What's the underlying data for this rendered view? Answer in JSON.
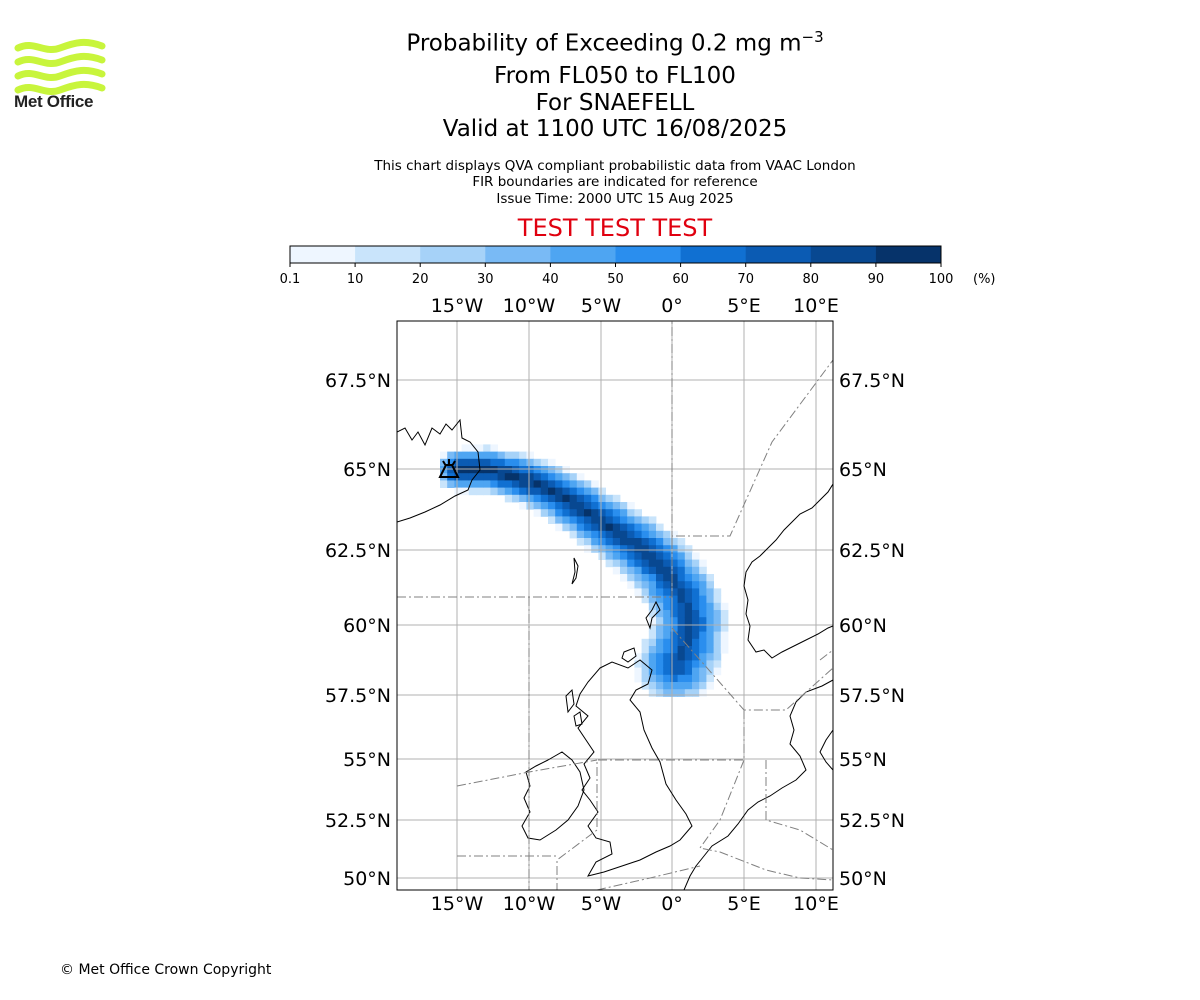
{
  "header": {
    "title_main": "Probability of Exceeding 0.2 mg m",
    "title_sup": "−3",
    "flight_levels": "From FL050 to FL100",
    "volcano": "For SNAEFELL",
    "valid": "Valid at 1100 UTC 16/08/2025",
    "note_1": "This chart displays QVA compliant probabilistic data from VAAC London",
    "note_2": "FIR boundaries are indicated for reference",
    "issue_time": "Issue Time: 2000 UTC 15 Aug 2025",
    "test_banner": "TEST TEST TEST"
  },
  "logo": {
    "text": "Met Office",
    "color": "#c8f53c"
  },
  "colorbar": {
    "unit": "(%)",
    "ticks": [
      "0.1",
      "10",
      "20",
      "30",
      "40",
      "50",
      "60",
      "70",
      "80",
      "90",
      "100"
    ],
    "colors": [
      "#eef6ff",
      "#c9e4fb",
      "#a6d2f8",
      "#79baf5",
      "#4ea5f2",
      "#2a8eee",
      "#1070d2",
      "#0b5bb3",
      "#084891",
      "#06336a"
    ]
  },
  "map": {
    "lon_labels": [
      "15°W",
      "10°W",
      "5°W",
      "0°",
      "5°E",
      "10°E"
    ],
    "lat_labels": [
      "67.5°N",
      "65°N",
      "62.5°N",
      "60°N",
      "57.5°N",
      "55°N",
      "52.5°N",
      "50°N"
    ],
    "plume_levels": [
      0.1,
      10,
      20,
      30,
      40,
      50,
      60,
      70,
      80,
      90,
      100
    ]
  },
  "footer": {
    "copyright": "© Met Office Crown Copyright"
  }
}
